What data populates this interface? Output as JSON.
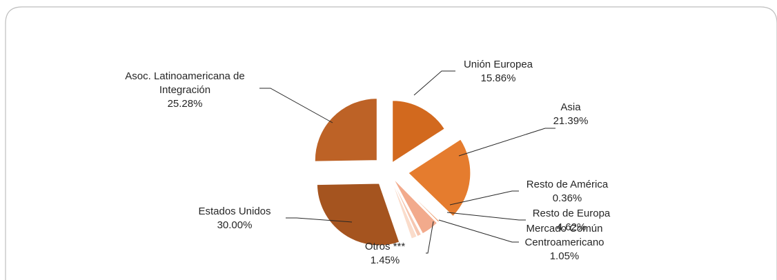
{
  "chart_data": {
    "type": "pie",
    "title": "",
    "legend": "none",
    "start": "top",
    "direction": "clockwise",
    "exploded": true,
    "slices": [
      {
        "key": "ue",
        "label": [
          "Unión Europea"
        ],
        "value_label": "15.86%",
        "value": 15.86,
        "color": "#D2691E"
      },
      {
        "key": "asia",
        "label": [
          "Asia"
        ],
        "value_label": "21.39%",
        "value": 21.39,
        "color": "#E57C2E"
      },
      {
        "key": "ram",
        "label": [
          "Resto de América"
        ],
        "value_label": "0.36%",
        "value": 0.36,
        "color": "#E98C55"
      },
      {
        "key": "reu",
        "label": [
          "Resto de Europa"
        ],
        "value_label": "4.62%",
        "value": 4.62,
        "color": "#F2AA8C"
      },
      {
        "key": "mcc",
        "label": [
          "Mercado Común",
          "Centroamericano"
        ],
        "value_label": "1.05%",
        "value": 1.05,
        "color": "#F6C7B1"
      },
      {
        "key": "otros",
        "label": [
          "Otros ***"
        ],
        "value_label": "1.45%",
        "value": 1.45,
        "color": "#FADCCB"
      },
      {
        "key": "eu",
        "label": [
          "Estados Unidos"
        ],
        "value_label": "30.00%",
        "value": 30.0,
        "color": "#A5541F"
      },
      {
        "key": "aladi",
        "label": [
          "Asoc. Latinoamericana de",
          "Integración"
        ],
        "value_label": "25.28%",
        "value": 25.28,
        "color": "#BD6226"
      }
    ]
  }
}
